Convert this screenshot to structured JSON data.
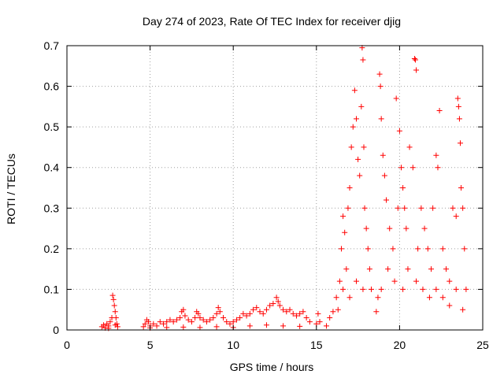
{
  "chart_data": {
    "type": "scatter",
    "title": "Day 274 of 2023, Rate Of TEC Index for receiver djig",
    "xlabel": "GPS time / hours",
    "ylabel": "ROTI / TECUs",
    "xlim": [
      0,
      25
    ],
    "ylim": [
      0,
      0.7
    ],
    "xticks": [
      0,
      5,
      10,
      15,
      20,
      25
    ],
    "yticks": [
      0,
      0.1,
      0.2,
      0.3,
      0.4,
      0.5,
      0.6,
      0.7
    ],
    "xtick_labels": [
      "0",
      "5",
      "10",
      "15",
      "20",
      "25"
    ],
    "ytick_labels": [
      "0",
      "0.1",
      "0.2",
      "0.3",
      "0.4",
      "0.5",
      "0.6",
      "0.7"
    ],
    "grid": true,
    "marker": "+",
    "series_color": "#ff0000",
    "series": [
      {
        "values": [
          [
            2.1,
            0.008
          ],
          [
            2.2,
            0.012
          ],
          [
            2.3,
            0.005
          ],
          [
            2.4,
            0.015
          ],
          [
            2.5,
            0.01
          ],
          [
            2.6,
            0.02
          ],
          [
            2.7,
            0.03
          ],
          [
            2.75,
            0.085
          ],
          [
            2.8,
            0.075
          ],
          [
            2.85,
            0.06
          ],
          [
            2.9,
            0.045
          ],
          [
            2.95,
            0.03
          ],
          [
            3.0,
            0.015
          ],
          [
            3.05,
            0.008
          ],
          [
            2.5,
            0.004
          ],
          [
            2.9,
            0.012
          ],
          [
            4.6,
            0.008
          ],
          [
            4.7,
            0.015
          ],
          [
            4.8,
            0.025
          ],
          [
            4.9,
            0.02
          ],
          [
            5.0,
            0.01
          ],
          [
            5.2,
            0.015
          ],
          [
            5.4,
            0.01
          ],
          [
            5.6,
            0.02
          ],
          [
            5.8,
            0.015
          ],
          [
            6.0,
            0.02
          ],
          [
            6.2,
            0.025
          ],
          [
            6.4,
            0.02
          ],
          [
            6.6,
            0.025
          ],
          [
            6.8,
            0.03
          ],
          [
            6.9,
            0.045
          ],
          [
            7.0,
            0.05
          ],
          [
            7.1,
            0.035
          ],
          [
            7.3,
            0.025
          ],
          [
            7.5,
            0.02
          ],
          [
            7.7,
            0.03
          ],
          [
            7.8,
            0.045
          ],
          [
            7.9,
            0.04
          ],
          [
            8.0,
            0.03
          ],
          [
            8.2,
            0.025
          ],
          [
            8.4,
            0.02
          ],
          [
            8.6,
            0.025
          ],
          [
            8.8,
            0.03
          ],
          [
            9.0,
            0.04
          ],
          [
            9.1,
            0.055
          ],
          [
            9.2,
            0.045
          ],
          [
            9.4,
            0.03
          ],
          [
            9.6,
            0.02
          ],
          [
            9.8,
            0.015
          ],
          [
            10.0,
            0.02
          ],
          [
            10.2,
            0.025
          ],
          [
            10.4,
            0.03
          ],
          [
            10.6,
            0.04
          ],
          [
            10.8,
            0.035
          ],
          [
            11.0,
            0.04
          ],
          [
            11.2,
            0.05
          ],
          [
            11.4,
            0.055
          ],
          [
            11.6,
            0.045
          ],
          [
            11.8,
            0.04
          ],
          [
            12.0,
            0.05
          ],
          [
            12.2,
            0.06
          ],
          [
            12.4,
            0.065
          ],
          [
            12.6,
            0.08
          ],
          [
            12.7,
            0.07
          ],
          [
            12.8,
            0.06
          ],
          [
            13.0,
            0.05
          ],
          [
            13.2,
            0.045
          ],
          [
            13.4,
            0.05
          ],
          [
            13.6,
            0.04
          ],
          [
            13.8,
            0.035
          ],
          [
            14.0,
            0.04
          ],
          [
            14.2,
            0.045
          ],
          [
            14.4,
            0.03
          ],
          [
            14.6,
            0.02
          ],
          [
            5.0,
            0.005
          ],
          [
            6.0,
            0.006
          ],
          [
            7.0,
            0.007
          ],
          [
            8.0,
            0.006
          ],
          [
            9.0,
            0.008
          ],
          [
            10.0,
            0.006
          ],
          [
            11.0,
            0.01
          ],
          [
            12.0,
            0.012
          ],
          [
            13.0,
            0.01
          ],
          [
            14.0,
            0.009
          ],
          [
            15.0,
            0.015
          ],
          [
            15.1,
            0.04
          ],
          [
            15.2,
            0.02
          ],
          [
            15.6,
            0.01
          ],
          [
            15.8,
            0.03
          ],
          [
            16.0,
            0.045
          ],
          [
            16.2,
            0.08
          ],
          [
            16.4,
            0.12
          ],
          [
            16.5,
            0.2
          ],
          [
            16.6,
            0.28
          ],
          [
            16.7,
            0.24
          ],
          [
            16.8,
            0.15
          ],
          [
            16.9,
            0.3
          ],
          [
            17.0,
            0.35
          ],
          [
            17.1,
            0.45
          ],
          [
            17.2,
            0.5
          ],
          [
            17.3,
            0.59
          ],
          [
            17.4,
            0.52
          ],
          [
            17.5,
            0.42
          ],
          [
            17.6,
            0.38
          ],
          [
            17.7,
            0.55
          ],
          [
            17.75,
            0.695
          ],
          [
            17.8,
            0.665
          ],
          [
            17.85,
            0.45
          ],
          [
            17.9,
            0.3
          ],
          [
            18.0,
            0.25
          ],
          [
            18.1,
            0.2
          ],
          [
            18.2,
            0.15
          ],
          [
            18.3,
            0.1
          ],
          [
            18.6,
            0.045
          ],
          [
            18.7,
            0.08
          ],
          [
            18.8,
            0.63
          ],
          [
            18.85,
            0.6
          ],
          [
            18.9,
            0.52
          ],
          [
            19.0,
            0.43
          ],
          [
            19.1,
            0.38
          ],
          [
            19.2,
            0.32
          ],
          [
            19.4,
            0.25
          ],
          [
            19.6,
            0.2
          ],
          [
            19.8,
            0.57
          ],
          [
            19.9,
            0.3
          ],
          [
            20.0,
            0.49
          ],
          [
            20.1,
            0.4
          ],
          [
            20.2,
            0.35
          ],
          [
            20.3,
            0.3
          ],
          [
            20.4,
            0.25
          ],
          [
            20.6,
            0.45
          ],
          [
            20.8,
            0.4
          ],
          [
            20.9,
            0.668
          ],
          [
            20.95,
            0.665
          ],
          [
            21.0,
            0.64
          ],
          [
            21.1,
            0.2
          ],
          [
            21.3,
            0.3
          ],
          [
            21.5,
            0.25
          ],
          [
            21.7,
            0.2
          ],
          [
            21.9,
            0.15
          ],
          [
            22.0,
            0.3
          ],
          [
            22.2,
            0.43
          ],
          [
            22.3,
            0.4
          ],
          [
            22.4,
            0.54
          ],
          [
            22.6,
            0.2
          ],
          [
            22.8,
            0.15
          ],
          [
            23.0,
            0.12
          ],
          [
            23.2,
            0.3
          ],
          [
            23.4,
            0.28
          ],
          [
            23.5,
            0.57
          ],
          [
            23.55,
            0.55
          ],
          [
            23.6,
            0.52
          ],
          [
            23.65,
            0.46
          ],
          [
            23.7,
            0.35
          ],
          [
            23.8,
            0.3
          ],
          [
            23.9,
            0.2
          ],
          [
            24.0,
            0.1
          ],
          [
            16.3,
            0.05
          ],
          [
            16.6,
            0.1
          ],
          [
            17.0,
            0.08
          ],
          [
            17.4,
            0.12
          ],
          [
            17.8,
            0.1
          ],
          [
            18.9,
            0.1
          ],
          [
            19.3,
            0.15
          ],
          [
            19.7,
            0.12
          ],
          [
            20.2,
            0.1
          ],
          [
            20.5,
            0.15
          ],
          [
            21.0,
            0.12
          ],
          [
            21.4,
            0.1
          ],
          [
            21.8,
            0.08
          ],
          [
            22.2,
            0.1
          ],
          [
            22.6,
            0.08
          ],
          [
            23.0,
            0.06
          ],
          [
            23.4,
            0.1
          ],
          [
            23.8,
            0.05
          ]
        ]
      }
    ]
  }
}
